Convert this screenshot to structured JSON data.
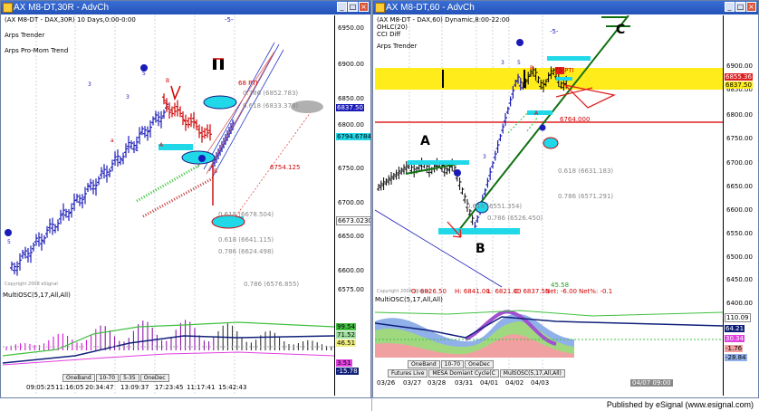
{
  "left": {
    "title": "AX M8-DT,30R - AdvCh",
    "header_line": "(AX M8-DT - DAX,30R) 10 Days,0:00-0:00",
    "marker": "-5-",
    "studies": [
      "Arps Trender",
      "Arps Pro-Mom Trend"
    ],
    "price_ticks": [
      "6950.00",
      "6900.00",
      "6850.00",
      "6800.00",
      "6750.00",
      "6700.00",
      "6650.00",
      "6600.00",
      "6575.00"
    ],
    "price_tags": {
      "p1": "6837.50",
      "p2": "6794.67843",
      "p3": "6673.02303"
    },
    "annotations": {
      "pti": "68 PTI",
      "r786a": "0.786 (6852.783)",
      "r618a": "0.618 (6833.379)",
      "target": "6754.125",
      "r618b": "0.618 (6678.504)",
      "r618c": "0.618 (6641.115)",
      "r786b": "0.786 (6624.498)",
      "r786c": "0.786 (6576.855)"
    },
    "indicator_title": "MultiOSC(5,17,All,All)",
    "ind_tags": [
      "99.54",
      "71.52",
      "46.51",
      "3.51",
      "-15.78"
    ],
    "tabs": [
      "OneBand",
      "10-70",
      "5-35",
      "OneDec"
    ],
    "time_labels": [
      "09:05:25",
      "11:16:05",
      "20:34:47",
      "13:09:37",
      "17:23:45",
      "11:17:41",
      "15:42:43"
    ],
    "copyright": "Copyright 2008 eSignal"
  },
  "right": {
    "title": "AX M8-DT,60 - AdvCh",
    "header_lines": [
      "(AX M8-DT - DAX,60) Dynamic,8:00-22:00",
      "OHLC(20)",
      "CCI Diff"
    ],
    "marker": "-5-",
    "study": "Arps Trender",
    "price_ticks": [
      "6900.00",
      "6850.00",
      "6800.00",
      "6750.00",
      "6700.00",
      "6650.00",
      "6600.00",
      "6550.00",
      "6500.00",
      "6450.00",
      "6400.00"
    ],
    "price_tags": {
      "p1": "6855.36",
      "p2": "6837.50"
    },
    "annotations": {
      "pti": "75 PTI",
      "level": "6764.000",
      "r618a": "0.618 (6631.183)",
      "r786a": "0.786 (6571.291)",
      "r618b": "0.618 (6551.354)",
      "r786b": "0.786 (6526.450)",
      "wave_a": "A",
      "wave_b": "B",
      "wave_c": "C",
      "cci_val": "45.58"
    },
    "ohlc_line": {
      "o": "O: 6826.50",
      "h": "H: 6841.00",
      "l": "L: 6821.00",
      "c": "C: 6837.50",
      "net": "Net: -6.00",
      "netp": "Net%: -0.1"
    },
    "indicator_title": "MultiOSC(5,17,All,All)",
    "ind_tags": [
      "110.09",
      "64.21",
      "30.34",
      "-1.76",
      "-28.84"
    ],
    "tabs": [
      "Futures Live",
      "MESA Domiant Cycle(C",
      "MultiOSC(5,17,All,All)"
    ],
    "band_tabs": [
      "OneBand",
      "10-70",
      "OneDec"
    ],
    "date_labels": [
      "03/26",
      "03/27",
      "03/28",
      "03/31",
      "04/01",
      "04/02",
      "04/03"
    ],
    "cursor_time": "04/07 09:00",
    "copyright": "Copyright 2008 eSignal"
  },
  "footer": {
    "credit": "Published by eSignal (www.esignal.com)"
  }
}
